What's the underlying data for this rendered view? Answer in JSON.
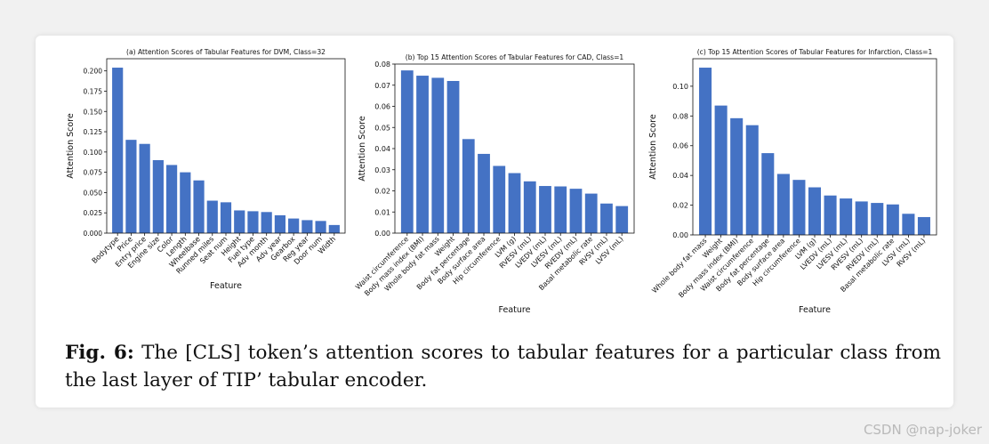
{
  "figure": {
    "caption_label": "Fig. 6:",
    "caption_text": "The [CLS] token’s attention scores to tabular features for a particular class from the last layer of TIP’ tabular encoder."
  },
  "watermark": "CSDN @nap-joker",
  "colors": {
    "bar": "#4472c4"
  },
  "chart_data": [
    {
      "type": "bar",
      "title": "(a) Attention Scores of Tabular Features for DVM, Class=32",
      "xlabel": "Feature",
      "ylabel": "Attention Score",
      "ylim": [
        0,
        0.215
      ],
      "yticks": [
        0.0,
        0.025,
        0.05,
        0.075,
        0.1,
        0.125,
        0.15,
        0.175,
        0.2
      ],
      "ytick_labels": [
        "0.000",
        "0.025",
        "0.050",
        "0.075",
        "0.100",
        "0.125",
        "0.150",
        "0.175",
        "0.200"
      ],
      "categories": [
        "Bodytype",
        "Price",
        "Entry price",
        "Engine size",
        "Color",
        "Length",
        "Wheelbase",
        "Runned miles",
        "Seat num",
        "Height",
        "Fuel type",
        "Adv month",
        "Adv year",
        "Gearbox",
        "Reg year",
        "Door num",
        "Width"
      ],
      "values": [
        0.204,
        0.115,
        0.11,
        0.09,
        0.084,
        0.075,
        0.065,
        0.04,
        0.038,
        0.028,
        0.027,
        0.026,
        0.022,
        0.018,
        0.016,
        0.015,
        0.01
      ],
      "grid": false
    },
    {
      "type": "bar",
      "title": "(b) Top 15 Attention Scores of Tabular Features for CAD, Class=1",
      "xlabel": "Feature",
      "ylabel": "Attention Score",
      "ylim": [
        0,
        0.08
      ],
      "yticks": [
        0.0,
        0.01,
        0.02,
        0.03,
        0.04,
        0.05,
        0.06,
        0.07,
        0.08
      ],
      "ytick_labels": [
        "0.00",
        "0.01",
        "0.02",
        "0.03",
        "0.04",
        "0.05",
        "0.06",
        "0.07",
        "0.08"
      ],
      "categories": [
        "Waist circumference",
        "Body mass index (BMI)",
        "Whole body fat mass",
        "Weight",
        "Body fat percentage",
        "Body surface area",
        "Hip circumference",
        "LVM (g)",
        "RVESV (mL)",
        "LVEDV (mL)",
        "LVESV (mL)",
        "RVEDV (mL)",
        "Basal metabolic rate",
        "RVSV (mL)",
        "LVSV (mL)"
      ],
      "values": [
        0.077,
        0.0745,
        0.0735,
        0.072,
        0.0445,
        0.0375,
        0.0318,
        0.0284,
        0.0245,
        0.0223,
        0.0221,
        0.021,
        0.0187,
        0.014,
        0.0128
      ],
      "grid": false
    },
    {
      "type": "bar",
      "title": "(c) Top 15 Attention Scores of Tabular Features for Infarction, Class=1",
      "xlabel": "Feature",
      "ylabel": "Attention Score",
      "ylim": [
        0,
        0.1185
      ],
      "yticks": [
        0.0,
        0.02,
        0.04,
        0.06,
        0.08,
        0.1
      ],
      "ytick_labels": [
        "0.00",
        "0.02",
        "0.04",
        "0.06",
        "0.08",
        "0.10"
      ],
      "categories": [
        "Whole body fat mass",
        "Weight",
        "Body mass index (BMI)",
        "Waist circumference",
        "Body fat percentage",
        "Body surface area",
        "Hip circumference",
        "LVM (g)",
        "LVEDV (mL)",
        "LVESV (mL)",
        "RVESV (mL)",
        "RVEDV (mL)",
        "Basal metabolic rate",
        "LVSV (mL)",
        "RVSV (mL)"
      ],
      "values": [
        0.1125,
        0.087,
        0.0785,
        0.0738,
        0.055,
        0.041,
        0.037,
        0.032,
        0.0265,
        0.0245,
        0.0225,
        0.0215,
        0.0205,
        0.0142,
        0.012
      ],
      "grid": false
    }
  ]
}
